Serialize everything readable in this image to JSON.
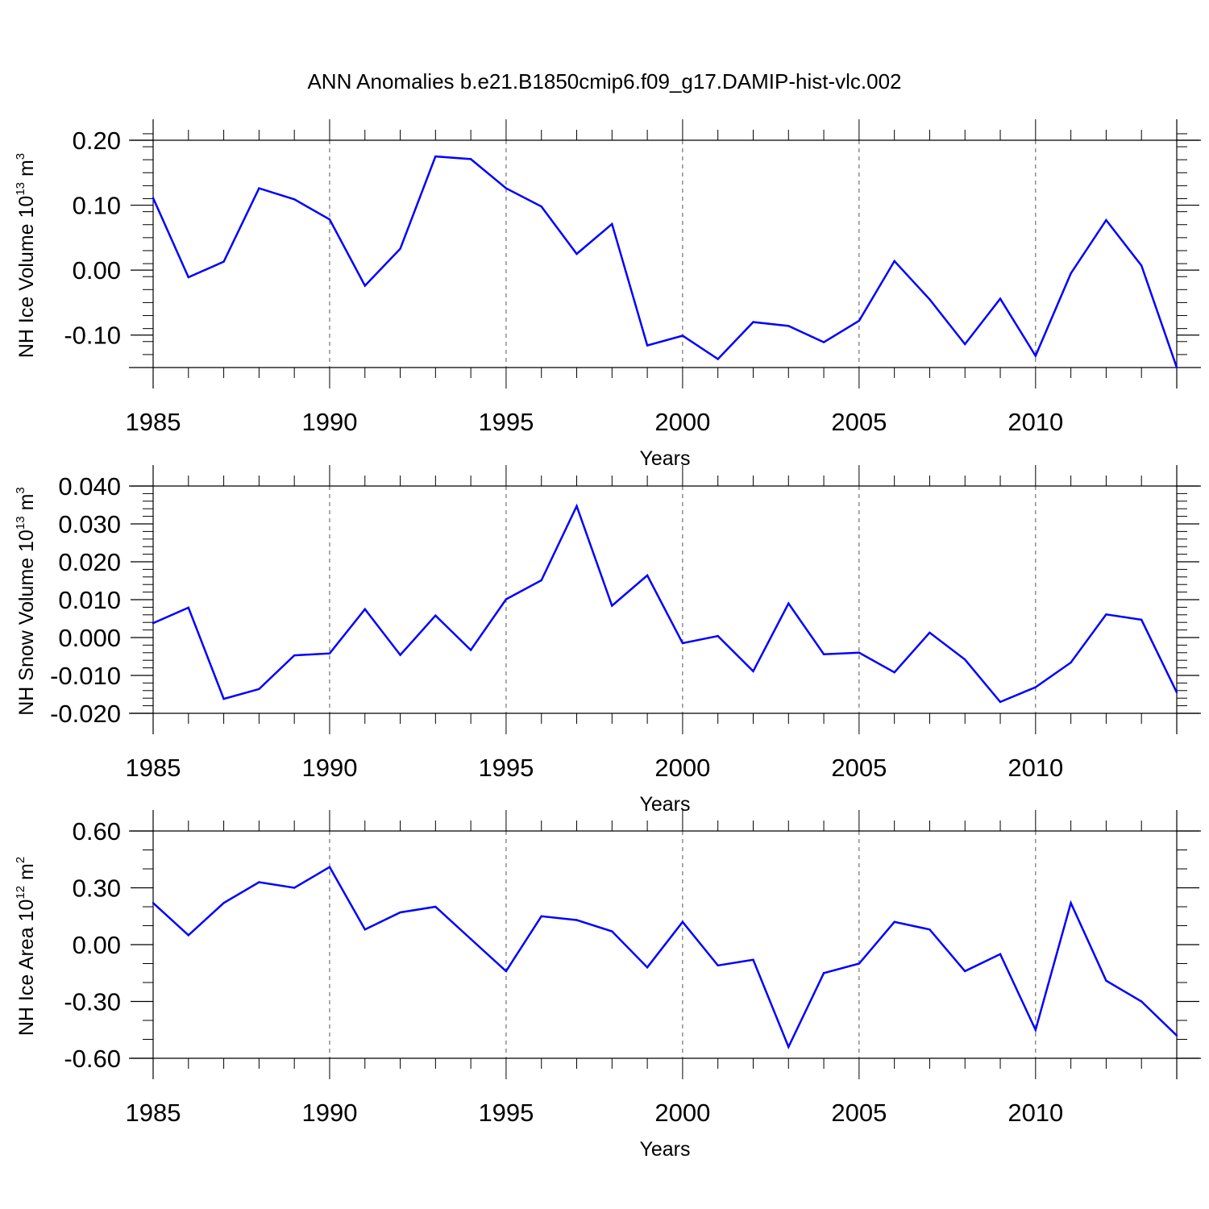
{
  "figure_title": "ANN Anomalies b.e21.B1850cmip6.f09_g17.DAMIP-hist-vlc.002",
  "colors": {
    "line": "#0000ff",
    "axis": "#000000",
    "grid": "#555555"
  },
  "chart_data": [
    {
      "type": "line",
      "xlabel": "Years",
      "ylabel": {
        "text": "NH Ice Volume 10",
        "sup": "13",
        "unit": " m",
        "unit_sup": "3"
      },
      "xlim": [
        1985,
        2014
      ],
      "ylim": [
        -0.15,
        0.2
      ],
      "xticks": [
        1985,
        1990,
        1995,
        2000,
        2005,
        2010
      ],
      "yticks": [
        0.2,
        0.1,
        0.0,
        -0.1
      ],
      "ytick_labels": [
        "0.20",
        "0.10",
        "0.00",
        "-0.10"
      ],
      "yminor": 0.02,
      "grid": "vertical dashed at major x ticks",
      "x": [
        1985,
        1986,
        1987,
        1988,
        1989,
        1990,
        1991,
        1992,
        1993,
        1994,
        1995,
        1996,
        1997,
        1998,
        1999,
        2000,
        2001,
        2002,
        2003,
        2004,
        2005,
        2006,
        2007,
        2008,
        2009,
        2010,
        2011,
        2012,
        2013,
        2014
      ],
      "y": [
        0.111,
        -0.011,
        0.013,
        0.126,
        0.109,
        0.078,
        -0.024,
        0.033,
        0.175,
        0.171,
        0.126,
        0.098,
        0.025,
        0.071,
        -0.116,
        -0.101,
        -0.137,
        -0.08,
        -0.086,
        -0.111,
        -0.078,
        0.014,
        -0.045,
        -0.114,
        -0.044,
        -0.132,
        -0.005,
        0.077,
        0.007,
        -0.15
      ]
    },
    {
      "type": "line",
      "xlabel": "Years",
      "ylabel": {
        "text": "NH Snow Volume 10",
        "sup": "13",
        "unit": " m",
        "unit_sup": "3"
      },
      "xlim": [
        1985,
        2014
      ],
      "ylim": [
        -0.02,
        0.04
      ],
      "xticks": [
        1985,
        1990,
        1995,
        2000,
        2005,
        2010
      ],
      "yticks": [
        0.04,
        0.03,
        0.02,
        0.01,
        0.0,
        -0.01,
        -0.02
      ],
      "ytick_labels": [
        "0.040",
        "0.030",
        "0.020",
        "0.010",
        "0.000",
        "-0.010",
        "-0.020"
      ],
      "yminor": 0.002,
      "grid": "vertical dashed at major x ticks",
      "x": [
        1985,
        1986,
        1987,
        1988,
        1989,
        1990,
        1991,
        1992,
        1993,
        1994,
        1995,
        1996,
        1997,
        1998,
        1999,
        2000,
        2001,
        2002,
        2003,
        2004,
        2005,
        2006,
        2007,
        2008,
        2009,
        2010,
        2011,
        2012,
        2013,
        2014
      ],
      "y": [
        0.0038,
        0.0079,
        -0.0162,
        -0.0136,
        -0.0047,
        -0.0042,
        0.0075,
        -0.0046,
        0.0058,
        -0.0033,
        0.0101,
        0.0151,
        0.0347,
        0.0084,
        0.0164,
        -0.0015,
        0.0004,
        -0.0089,
        0.009,
        -0.0044,
        -0.004,
        -0.0092,
        0.0013,
        -0.0058,
        -0.017,
        -0.0131,
        -0.0066,
        0.0061,
        0.0047,
        -0.0145
      ]
    },
    {
      "type": "line",
      "xlabel": "Years",
      "ylabel": {
        "text": "NH Ice Area 10",
        "sup": "12",
        "unit": " m",
        "unit_sup": "2"
      },
      "xlim": [
        1985,
        2014
      ],
      "ylim": [
        -0.6,
        0.6
      ],
      "xticks": [
        1985,
        1990,
        1995,
        2000,
        2005,
        2010
      ],
      "yticks": [
        0.6,
        0.3,
        0.0,
        -0.3,
        -0.6
      ],
      "ytick_labels": [
        "0.60",
        "0.30",
        "0.00",
        "-0.30",
        "-0.60"
      ],
      "yminor": 0.1,
      "grid": "vertical dashed at major x ticks",
      "x": [
        1985,
        1986,
        1987,
        1988,
        1989,
        1990,
        1991,
        1992,
        1993,
        1994,
        1995,
        1996,
        1997,
        1998,
        1999,
        2000,
        2001,
        2002,
        2003,
        2004,
        2005,
        2006,
        2007,
        2008,
        2009,
        2010,
        2011,
        2012,
        2013,
        2014
      ],
      "y": [
        0.22,
        0.05,
        0.22,
        0.33,
        0.3,
        0.41,
        0.08,
        0.17,
        0.2,
        0.03,
        -0.14,
        0.15,
        0.13,
        0.07,
        -0.12,
        0.12,
        -0.11,
        -0.08,
        -0.54,
        -0.15,
        -0.1,
        0.12,
        0.08,
        -0.14,
        -0.05,
        -0.45,
        0.22,
        -0.19,
        -0.3,
        -0.48
      ]
    }
  ]
}
